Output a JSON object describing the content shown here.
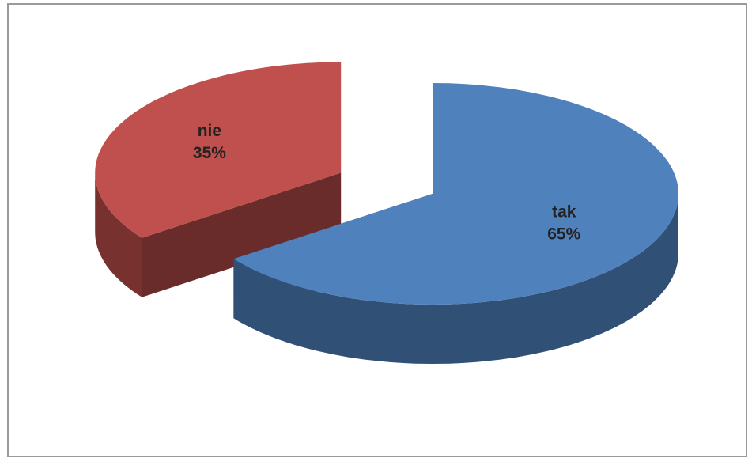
{
  "chart_data": {
    "type": "pie3d",
    "categories": [
      "tak",
      "nie"
    ],
    "values": [
      65,
      35
    ],
    "value_labels": [
      "65%",
      "35%"
    ],
    "colors": [
      "#4f81bd",
      "#c0504d"
    ],
    "exploded": [
      false,
      true
    ]
  }
}
